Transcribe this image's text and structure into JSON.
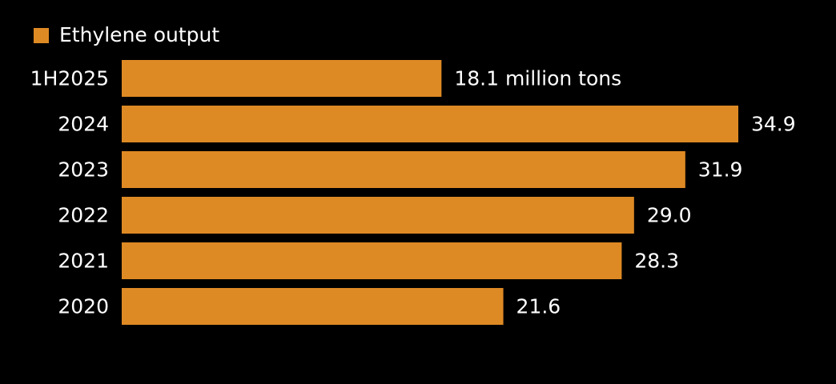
{
  "chart_data": {
    "type": "bar",
    "orientation": "horizontal",
    "categories": [
      "1H2025",
      "2024",
      "2023",
      "2022",
      "2021",
      "2020"
    ],
    "series": [
      {
        "name": "Ethylene output",
        "values": [
          18.1,
          34.9,
          31.9,
          29.0,
          28.3,
          21.6
        ]
      }
    ],
    "value_labels": [
      "18.1 million tons",
      "34.9",
      "31.9",
      "29.0",
      "28.3",
      "21.6"
    ],
    "title": "",
    "xlabel": "",
    "ylabel": "",
    "xlim": [
      0,
      35
    ],
    "grid": false,
    "legend_position": "top-left"
  },
  "colors": {
    "background": "#000000",
    "bar": "#de8a24",
    "text": "#ffffff"
  }
}
